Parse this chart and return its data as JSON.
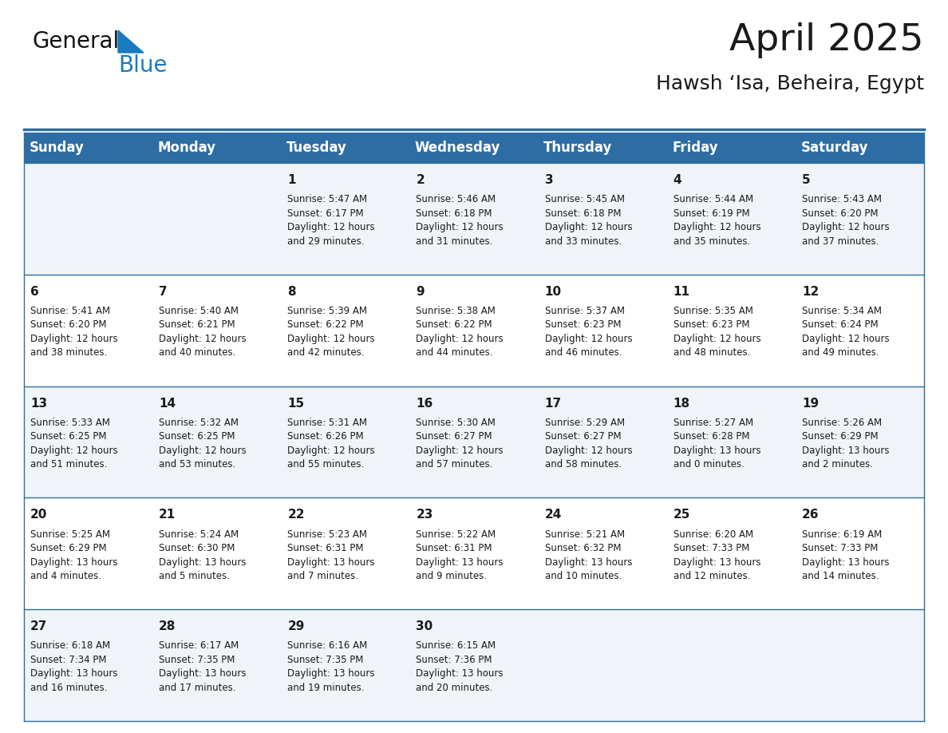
{
  "title": "April 2025",
  "subtitle": "Hawsh ‘Isa, Beheira, Egypt",
  "header_bg": "#2E6DA4",
  "header_text_color": "#FFFFFF",
  "cell_bg_light": "#F0F4F8",
  "cell_bg_white": "#FFFFFF",
  "border_color": "#2E6DA4",
  "text_color": "#1a1a1a",
  "days_of_week": [
    "Sunday",
    "Monday",
    "Tuesday",
    "Wednesday",
    "Thursday",
    "Friday",
    "Saturday"
  ],
  "weeks": [
    [
      {
        "day": "",
        "info": ""
      },
      {
        "day": "",
        "info": ""
      },
      {
        "day": "1",
        "info": "Sunrise: 5:47 AM\nSunset: 6:17 PM\nDaylight: 12 hours\nand 29 minutes."
      },
      {
        "day": "2",
        "info": "Sunrise: 5:46 AM\nSunset: 6:18 PM\nDaylight: 12 hours\nand 31 minutes."
      },
      {
        "day": "3",
        "info": "Sunrise: 5:45 AM\nSunset: 6:18 PM\nDaylight: 12 hours\nand 33 minutes."
      },
      {
        "day": "4",
        "info": "Sunrise: 5:44 AM\nSunset: 6:19 PM\nDaylight: 12 hours\nand 35 minutes."
      },
      {
        "day": "5",
        "info": "Sunrise: 5:43 AM\nSunset: 6:20 PM\nDaylight: 12 hours\nand 37 minutes."
      }
    ],
    [
      {
        "day": "6",
        "info": "Sunrise: 5:41 AM\nSunset: 6:20 PM\nDaylight: 12 hours\nand 38 minutes."
      },
      {
        "day": "7",
        "info": "Sunrise: 5:40 AM\nSunset: 6:21 PM\nDaylight: 12 hours\nand 40 minutes."
      },
      {
        "day": "8",
        "info": "Sunrise: 5:39 AM\nSunset: 6:22 PM\nDaylight: 12 hours\nand 42 minutes."
      },
      {
        "day": "9",
        "info": "Sunrise: 5:38 AM\nSunset: 6:22 PM\nDaylight: 12 hours\nand 44 minutes."
      },
      {
        "day": "10",
        "info": "Sunrise: 5:37 AM\nSunset: 6:23 PM\nDaylight: 12 hours\nand 46 minutes."
      },
      {
        "day": "11",
        "info": "Sunrise: 5:35 AM\nSunset: 6:23 PM\nDaylight: 12 hours\nand 48 minutes."
      },
      {
        "day": "12",
        "info": "Sunrise: 5:34 AM\nSunset: 6:24 PM\nDaylight: 12 hours\nand 49 minutes."
      }
    ],
    [
      {
        "day": "13",
        "info": "Sunrise: 5:33 AM\nSunset: 6:25 PM\nDaylight: 12 hours\nand 51 minutes."
      },
      {
        "day": "14",
        "info": "Sunrise: 5:32 AM\nSunset: 6:25 PM\nDaylight: 12 hours\nand 53 minutes."
      },
      {
        "day": "15",
        "info": "Sunrise: 5:31 AM\nSunset: 6:26 PM\nDaylight: 12 hours\nand 55 minutes."
      },
      {
        "day": "16",
        "info": "Sunrise: 5:30 AM\nSunset: 6:27 PM\nDaylight: 12 hours\nand 57 minutes."
      },
      {
        "day": "17",
        "info": "Sunrise: 5:29 AM\nSunset: 6:27 PM\nDaylight: 12 hours\nand 58 minutes."
      },
      {
        "day": "18",
        "info": "Sunrise: 5:27 AM\nSunset: 6:28 PM\nDaylight: 13 hours\nand 0 minutes."
      },
      {
        "day": "19",
        "info": "Sunrise: 5:26 AM\nSunset: 6:29 PM\nDaylight: 13 hours\nand 2 minutes."
      }
    ],
    [
      {
        "day": "20",
        "info": "Sunrise: 5:25 AM\nSunset: 6:29 PM\nDaylight: 13 hours\nand 4 minutes."
      },
      {
        "day": "21",
        "info": "Sunrise: 5:24 AM\nSunset: 6:30 PM\nDaylight: 13 hours\nand 5 minutes."
      },
      {
        "day": "22",
        "info": "Sunrise: 5:23 AM\nSunset: 6:31 PM\nDaylight: 13 hours\nand 7 minutes."
      },
      {
        "day": "23",
        "info": "Sunrise: 5:22 AM\nSunset: 6:31 PM\nDaylight: 13 hours\nand 9 minutes."
      },
      {
        "day": "24",
        "info": "Sunrise: 5:21 AM\nSunset: 6:32 PM\nDaylight: 13 hours\nand 10 minutes."
      },
      {
        "day": "25",
        "info": "Sunrise: 6:20 AM\nSunset: 7:33 PM\nDaylight: 13 hours\nand 12 minutes."
      },
      {
        "day": "26",
        "info": "Sunrise: 6:19 AM\nSunset: 7:33 PM\nDaylight: 13 hours\nand 14 minutes."
      }
    ],
    [
      {
        "day": "27",
        "info": "Sunrise: 6:18 AM\nSunset: 7:34 PM\nDaylight: 13 hours\nand 16 minutes."
      },
      {
        "day": "28",
        "info": "Sunrise: 6:17 AM\nSunset: 7:35 PM\nDaylight: 13 hours\nand 17 minutes."
      },
      {
        "day": "29",
        "info": "Sunrise: 6:16 AM\nSunset: 7:35 PM\nDaylight: 13 hours\nand 19 minutes."
      },
      {
        "day": "30",
        "info": "Sunrise: 6:15 AM\nSunset: 7:36 PM\nDaylight: 13 hours\nand 20 minutes."
      },
      {
        "day": "",
        "info": ""
      },
      {
        "day": "",
        "info": ""
      },
      {
        "day": "",
        "info": ""
      }
    ]
  ],
  "logo_general_color": "#111111",
  "logo_blue_color": "#1a7abf",
  "title_fontsize": 34,
  "subtitle_fontsize": 18,
  "header_fontsize": 12,
  "day_num_fontsize": 11,
  "info_fontsize": 8.5
}
